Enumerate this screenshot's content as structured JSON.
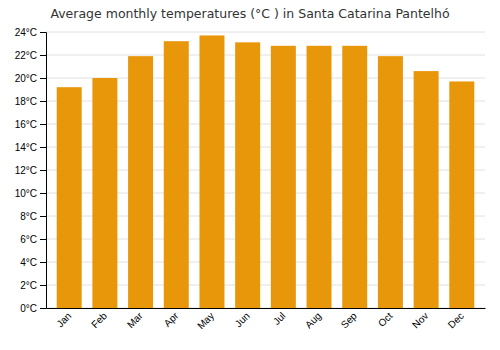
{
  "chart_data": {
    "type": "bar",
    "title": "Average monthly temperatures (°C ) in Santa Catarina Pantelhó",
    "categories": [
      "Jan",
      "Feb",
      "Mar",
      "Apr",
      "May",
      "Jun",
      "Jul",
      "Aug",
      "Sep",
      "Oct",
      "Nov",
      "Dec"
    ],
    "values": [
      19.2,
      20.0,
      21.9,
      23.2,
      23.7,
      23.1,
      22.8,
      22.8,
      22.8,
      21.9,
      20.6,
      19.7
    ],
    "color": "#E8960A",
    "ylim": [
      0,
      24
    ],
    "yticks": [
      {
        "value": 0,
        "label": "0°C"
      },
      {
        "value": 2,
        "label": "2°C"
      },
      {
        "value": 4,
        "label": "4°C"
      },
      {
        "value": 6,
        "label": "6°C"
      },
      {
        "value": 8,
        "label": "8°C"
      },
      {
        "value": 10,
        "label": "10°C"
      },
      {
        "value": 12,
        "label": "12°C"
      },
      {
        "value": 14,
        "label": "14°C"
      },
      {
        "value": 16,
        "label": "16°C"
      },
      {
        "value": 18,
        "label": "18°C"
      },
      {
        "value": 20,
        "label": "20°C"
      },
      {
        "value": 22,
        "label": "22°C"
      },
      {
        "value": 24,
        "label": "24°C"
      }
    ],
    "grid": true
  }
}
